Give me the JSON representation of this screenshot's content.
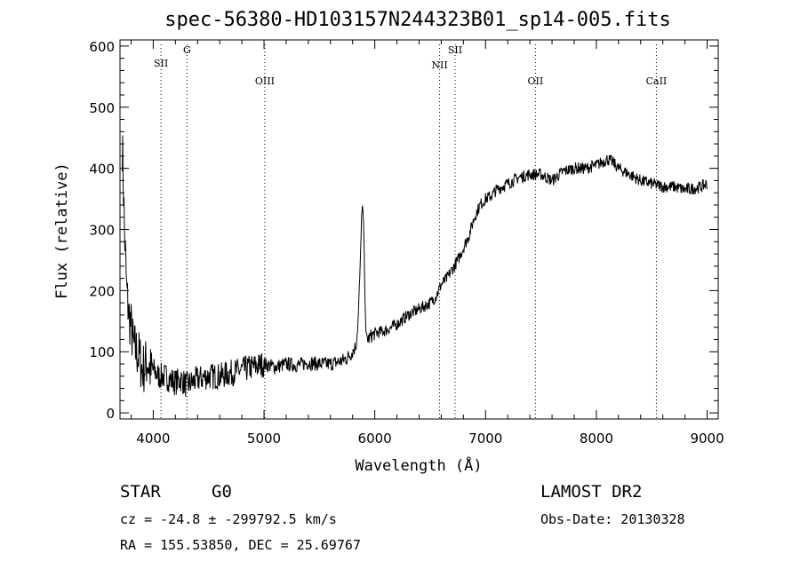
{
  "chart_data": {
    "type": "line",
    "title": "spec-56380-HD103157N244323B01_sp14-005.fits",
    "xlabel": "Wavelength (Å)",
    "ylabel": "Flux (relative)",
    "xlim": [
      3700,
      9100
    ],
    "ylim": [
      -10,
      610
    ],
    "x_ticks": [
      4000,
      5000,
      6000,
      7000,
      8000,
      9000
    ],
    "y_ticks": [
      0,
      100,
      200,
      300,
      400,
      500,
      600
    ],
    "grid": false,
    "line_markers": [
      {
        "label": "SII",
        "x": 4070
      },
      {
        "label": "G",
        "x": 4305
      },
      {
        "label": "OIII",
        "x": 5007
      },
      {
        "label": "NII",
        "x": 6585
      },
      {
        "label": "SII",
        "x": 6725
      },
      {
        "label": "OII",
        "x": 7450
      },
      {
        "label": "CaII",
        "x": 8542
      }
    ],
    "series": [
      {
        "x": [
          3720,
          3730,
          3740,
          3750,
          3760,
          3780,
          3800,
          3820,
          3850,
          3880,
          3900,
          3920,
          3950,
          3980,
          4000,
          4050,
          4100,
          4150,
          4200,
          4250,
          4300,
          4350,
          4400,
          4500,
          4600,
          4700,
          4800,
          4900,
          5000,
          5100,
          5200,
          5300,
          5400,
          5500,
          5600,
          5700,
          5750,
          5800,
          5830,
          5850,
          5870,
          5880,
          5890,
          5900,
          5910,
          5920,
          5940,
          5960,
          6000,
          6100,
          6200,
          6300,
          6400,
          6500,
          6550,
          6600,
          6650,
          6700,
          6750,
          6800,
          6850,
          6900,
          6950,
          7000,
          7050,
          7100,
          7200,
          7300,
          7400,
          7500,
          7600,
          7700,
          7800,
          7900,
          8000,
          8100,
          8150,
          8200,
          8300,
          8400,
          8500,
          8600,
          8700,
          8800,
          8900,
          8950,
          9000
        ],
        "y": [
          440,
          380,
          300,
          250,
          200,
          160,
          140,
          110,
          100,
          90,
          70,
          75,
          85,
          65,
          70,
          60,
          60,
          55,
          50,
          55,
          45,
          50,
          55,
          60,
          60,
          65,
          70,
          75,
          80,
          75,
          80,
          78,
          82,
          80,
          80,
          85,
          90,
          100,
          110,
          150,
          250,
          320,
          340,
          300,
          200,
          130,
          120,
          125,
          130,
          135,
          145,
          160,
          170,
          180,
          190,
          210,
          220,
          235,
          250,
          270,
          290,
          320,
          340,
          350,
          355,
          365,
          375,
          385,
          390,
          390,
          380,
          395,
          400,
          400,
          405,
          415,
          410,
          400,
          390,
          380,
          375,
          370,
          370,
          365,
          368,
          370,
          375
        ]
      }
    ]
  },
  "info": {
    "class": "STAR",
    "subclass": "G0",
    "survey": "LAMOST DR2",
    "cz": "cz = -24.8 ± -299792.5 km/s",
    "obs_date": "Obs-Date: 20130328",
    "radec": "RA = 155.53850, DEC =  25.69767"
  }
}
